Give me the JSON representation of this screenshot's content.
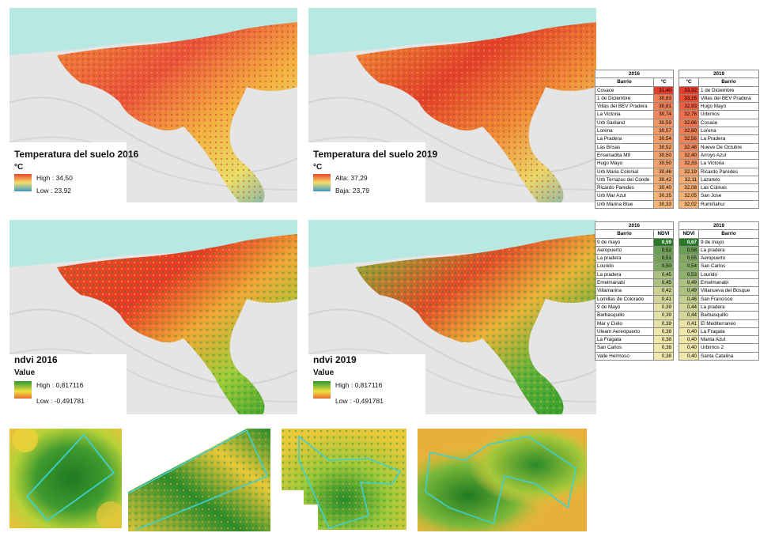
{
  "maps": {
    "temp2016": {
      "title": "Temperatura del suelo 2016",
      "unit": "°C",
      "high": "High : 34,50",
      "low": "Low : 23,92"
    },
    "temp2019": {
      "title": "Temperatura del suelo 2019",
      "unit": "°C",
      "high": "Alta: 37,29",
      "low": "Baja: 23,79"
    },
    "ndvi2016": {
      "title": "ndvi  2016",
      "unit": "Value",
      "high": "High : 0,817116",
      "low": "Low : -0,491781"
    },
    "ndvi2019": {
      "title": "ndvi 2019",
      "unit": "Value",
      "high": "High : 0,817116",
      "low": "Low : -0,491781"
    }
  },
  "colors": {
    "sea": "#b7e8e2",
    "land_grey": "#e3e3e3",
    "temp_hot": "#e8442a",
    "temp_warm": "#f5a23a",
    "temp_mid": "#e9e36a",
    "temp_cool": "#4f9bc7",
    "ndvi_high": "#2e9a2e",
    "ndvi_mid": "#c9d83a",
    "ndvi_low": "#e4382a",
    "outline": "#3fd0d0"
  },
  "tables": {
    "temp2016": {
      "year": "2016",
      "col_name": "Barrio",
      "col_value": "°C",
      "rows": [
        {
          "name": "Cosace",
          "value": "31,40"
        },
        {
          "name": "1 de Diciembre",
          "value": "30,83"
        },
        {
          "name": "Villas del BEV Pradera",
          "value": "30,81"
        },
        {
          "name": "La Victoria",
          "value": "30,74"
        },
        {
          "name": "Urb Sariland",
          "value": "30,59"
        },
        {
          "name": "Lorena",
          "value": "30,57"
        },
        {
          "name": "La Pradera",
          "value": "30,54"
        },
        {
          "name": "Las Brisas",
          "value": "30,52"
        },
        {
          "name": "Ensenadita M9",
          "value": "30,50"
        },
        {
          "name": "Hugo Mayo",
          "value": "30,50"
        },
        {
          "name": "Urb Maria Colonial",
          "value": "30,46"
        },
        {
          "name": "Urb Terrazas del Conde",
          "value": "30,42"
        },
        {
          "name": "Ricardo Paredes",
          "value": "30,40"
        },
        {
          "name": "Urb Mar Azul",
          "value": "30,35"
        },
        {
          "name": "Urb Marina Blue",
          "value": "30,33"
        }
      ]
    },
    "temp2019": {
      "year": "2019",
      "col_name": "Barrio",
      "col_value": "°C",
      "rows": [
        {
          "name": "1 de Diciembre",
          "value": "33,32"
        },
        {
          "name": "Villas del BEV Pradera",
          "value": "33,16"
        },
        {
          "name": "Hugo Mayo",
          "value": "32,93"
        },
        {
          "name": "Urbirrios",
          "value": "32,76"
        },
        {
          "name": "Cosace",
          "value": "32,66"
        },
        {
          "name": "Lorena",
          "value": "32,60"
        },
        {
          "name": "La Pradera",
          "value": "32,56"
        },
        {
          "name": "Nueve De Octubre",
          "value": "32,48"
        },
        {
          "name": "Arroyo Azul",
          "value": "32,40"
        },
        {
          "name": "La Victoria",
          "value": "32,33"
        },
        {
          "name": "Ricardo Paredes",
          "value": "32,19"
        },
        {
          "name": "Lazareto",
          "value": "32,11"
        },
        {
          "name": "Las Colinas",
          "value": "32,08"
        },
        {
          "name": "San Jose",
          "value": "32,05"
        },
        {
          "name": "Rumiñahui",
          "value": "32,02"
        }
      ]
    },
    "ndvi2016": {
      "year": "2016",
      "col_name": "Barrio",
      "col_value": "NDVI",
      "rows": [
        {
          "name": "9 de mayo",
          "value": "0,59"
        },
        {
          "name": "Aeropuerto",
          "value": "0,52"
        },
        {
          "name": "La pradera",
          "value": "0,51"
        },
        {
          "name": "Lourido",
          "value": "0,50"
        },
        {
          "name": "La pradera",
          "value": "0,45"
        },
        {
          "name": "Emelmanabi",
          "value": "0,45"
        },
        {
          "name": "Villamarina",
          "value": "0,42"
        },
        {
          "name": "Lomillas de Colorado",
          "value": "0,41"
        },
        {
          "name": "9 de Mayo",
          "value": "0,39"
        },
        {
          "name": "Barbasquillo",
          "value": "0,39"
        },
        {
          "name": "Mar y Cielo",
          "value": "0,39"
        },
        {
          "name": "Uleam Aereopuerto",
          "value": "0,38"
        },
        {
          "name": "La Fragata",
          "value": "0,38"
        },
        {
          "name": "San Carlos",
          "value": "0,38"
        },
        {
          "name": "Valle Hermoso",
          "value": "0,38"
        }
      ]
    },
    "ndvi2019": {
      "year": "2019",
      "col_name": "Barrio",
      "col_value": "NDVI",
      "rows": [
        {
          "name": "9 de mayo",
          "value": "0,67"
        },
        {
          "name": "La pradera",
          "value": "0,58"
        },
        {
          "name": "Aeropuerto",
          "value": "0,55"
        },
        {
          "name": "San Carlos",
          "value": "0,54"
        },
        {
          "name": "Lourido",
          "value": "0,53"
        },
        {
          "name": "Emelmanabi",
          "value": "0,49"
        },
        {
          "name": "Villanueva del Bosque",
          "value": "0,49"
        },
        {
          "name": "San Francisco",
          "value": "0,46"
        },
        {
          "name": "La pradera",
          "value": "0,44"
        },
        {
          "name": "Barbasquillo",
          "value": "0,44"
        },
        {
          "name": "El Mediterraneo",
          "value": "0,41"
        },
        {
          "name": "La Fragata",
          "value": "0,40"
        },
        {
          "name": "Manta Azul",
          "value": "0,40"
        },
        {
          "name": "Urbirrios 2",
          "value": "0,40"
        },
        {
          "name": "Santa Catalina",
          "value": "0,40"
        }
      ]
    }
  }
}
